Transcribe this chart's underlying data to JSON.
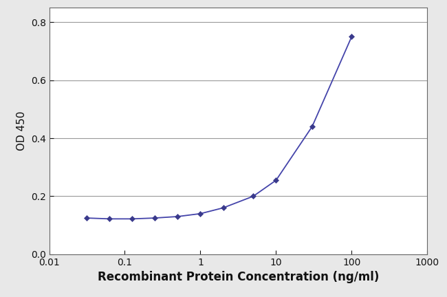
{
  "x": [
    0.031,
    0.063,
    0.125,
    0.25,
    0.5,
    1.0,
    2.0,
    5.0,
    10.0,
    30.0,
    100.0
  ],
  "y": [
    0.125,
    0.122,
    0.122,
    0.125,
    0.13,
    0.14,
    0.16,
    0.2,
    0.255,
    0.44,
    0.75
  ],
  "line_color": "#4444aa",
  "marker": "D",
  "marker_size": 4,
  "marker_facecolor": "#3a3a8c",
  "xlabel": "Recombinant Protein Concentration (ng/ml)",
  "ylabel": "OD 450",
  "xlim_log": [
    0.01,
    1000
  ],
  "ylim": [
    0.0,
    0.85
  ],
  "yticks": [
    0.0,
    0.2,
    0.4,
    0.6,
    0.8
  ],
  "xtick_positions": [
    0.01,
    0.1,
    1,
    10,
    100,
    1000
  ],
  "xtick_labels": [
    "0.01",
    "0.1",
    "1",
    "10",
    "100",
    "1000"
  ],
  "background_color": "#e8e8e8",
  "plot_bg_color": "#ffffff",
  "grid_color": "#999999",
  "xlabel_fontsize": 12,
  "ylabel_fontsize": 11,
  "tick_fontsize": 10,
  "figwidth": 6.5,
  "figheight": 4.32,
  "dpi": 100
}
